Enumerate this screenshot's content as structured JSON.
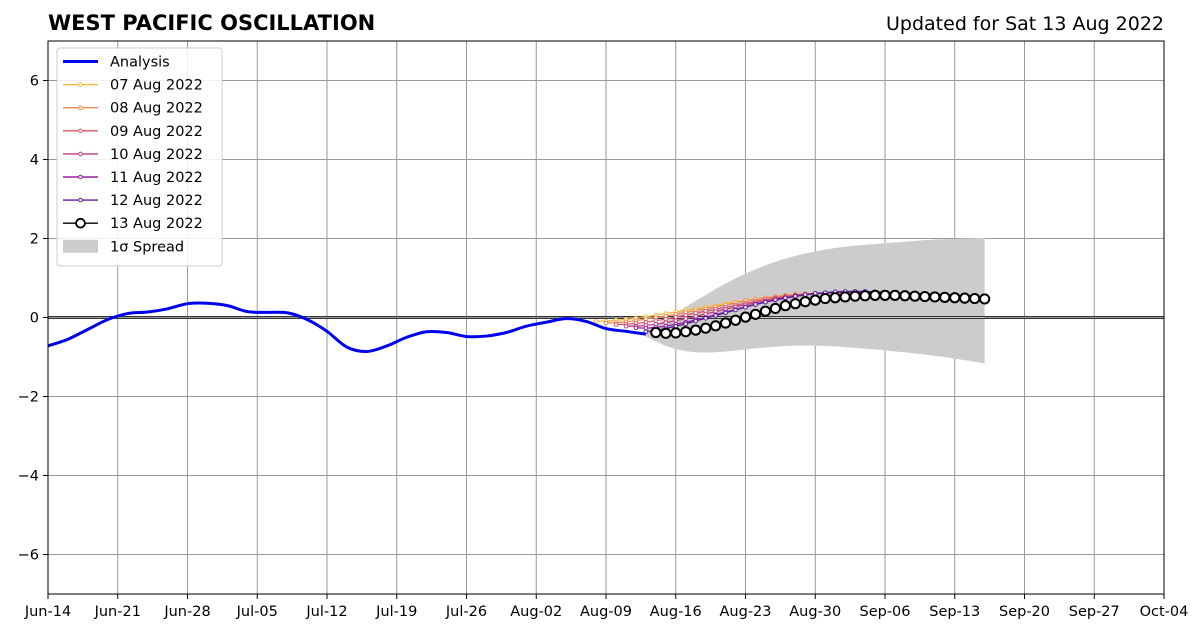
{
  "chart_data": {
    "type": "line",
    "title": "WEST PACIFIC OSCILLATION",
    "subtitle": "Updated for Sat 13 Aug 2022",
    "xlabel": "",
    "ylabel": "",
    "xlim": [
      "2022-06-14",
      "2022-10-04"
    ],
    "ylim": [
      -7,
      7
    ],
    "x_tick_labels": [
      "Jun-14",
      "Jun-21",
      "Jun-28",
      "Jul-05",
      "Jul-12",
      "Jul-19",
      "Jul-26",
      "Aug-02",
      "Aug-09",
      "Aug-16",
      "Aug-23",
      "Aug-30",
      "Sep-06",
      "Sep-13",
      "Sep-20",
      "Sep-27",
      "Oct-04"
    ],
    "x_tick_dates": [
      "2022-06-14",
      "2022-06-21",
      "2022-06-28",
      "2022-07-05",
      "2022-07-12",
      "2022-07-19",
      "2022-07-26",
      "2022-08-02",
      "2022-08-09",
      "2022-08-16",
      "2022-08-23",
      "2022-08-30",
      "2022-09-06",
      "2022-09-13",
      "2022-09-20",
      "2022-09-27",
      "2022-10-04"
    ],
    "y_ticks": [
      -6,
      -4,
      -2,
      0,
      2,
      4,
      6
    ],
    "y_tick_labels": [
      "−6",
      "−4",
      "−2",
      "0",
      "2",
      "4",
      "6"
    ],
    "grid": true,
    "legend_position": "top-left",
    "analysis": {
      "name": "Analysis",
      "color": "#0000ee",
      "points": [
        [
          "2022-06-14",
          -0.72
        ],
        [
          "2022-06-16",
          -0.55
        ],
        [
          "2022-06-18",
          -0.3
        ],
        [
          "2022-06-20",
          -0.05
        ],
        [
          "2022-06-22",
          0.1
        ],
        [
          "2022-06-24",
          0.14
        ],
        [
          "2022-06-26",
          0.22
        ],
        [
          "2022-06-28",
          0.35
        ],
        [
          "2022-06-30",
          0.36
        ],
        [
          "2022-07-02",
          0.3
        ],
        [
          "2022-07-04",
          0.15
        ],
        [
          "2022-07-06",
          0.13
        ],
        [
          "2022-07-08",
          0.12
        ],
        [
          "2022-07-10",
          -0.05
        ],
        [
          "2022-07-12",
          -0.35
        ],
        [
          "2022-07-14",
          -0.75
        ],
        [
          "2022-07-16",
          -0.86
        ],
        [
          "2022-07-18",
          -0.72
        ],
        [
          "2022-07-20",
          -0.5
        ],
        [
          "2022-07-22",
          -0.36
        ],
        [
          "2022-07-24",
          -0.38
        ],
        [
          "2022-07-26",
          -0.48
        ],
        [
          "2022-07-28",
          -0.47
        ],
        [
          "2022-07-30",
          -0.38
        ],
        [
          "2022-08-01",
          -0.22
        ],
        [
          "2022-08-03",
          -0.12
        ],
        [
          "2022-08-05",
          -0.03
        ],
        [
          "2022-08-07",
          -0.1
        ],
        [
          "2022-08-09",
          -0.28
        ],
        [
          "2022-08-11",
          -0.35
        ],
        [
          "2022-08-13",
          -0.42
        ]
      ]
    },
    "forecasts": [
      {
        "name": "07 Aug 2022",
        "color": "#f9b840",
        "values": [
          -0.1,
          -0.09,
          -0.07,
          -0.05,
          -0.02,
          0.02,
          0.06,
          0.1,
          0.14,
          0.18,
          0.22,
          0.26,
          0.3,
          0.35,
          0.39,
          0.43,
          0.47,
          0.5,
          0.53,
          0.56,
          0.58,
          0.6,
          0.61,
          0.62,
          0.62,
          0.62,
          0.61,
          0.6,
          0.59,
          0.57,
          0.56,
          0.55,
          0.54,
          0.52,
          0.51,
          0.5,
          0.49,
          0.48,
          0.47
        ],
        "start": "2022-08-08"
      },
      {
        "name": "08 Aug 2022",
        "color": "#f08a4b",
        "values": [
          -0.14,
          -0.13,
          -0.11,
          -0.08,
          -0.04,
          0.0,
          0.04,
          0.08,
          0.13,
          0.17,
          0.22,
          0.27,
          0.32,
          0.37,
          0.42,
          0.46,
          0.5,
          0.53,
          0.56,
          0.58,
          0.6,
          0.61,
          0.62,
          0.62,
          0.62,
          0.61,
          0.6,
          0.59,
          0.58,
          0.57,
          0.56,
          0.55,
          0.54,
          0.53,
          0.52,
          0.51,
          0.5,
          0.49
        ],
        "start": "2022-08-09"
      },
      {
        "name": "09 Aug 2022",
        "color": "#e0556a",
        "values": [
          -0.18,
          -0.17,
          -0.15,
          -0.12,
          -0.08,
          -0.04,
          0.01,
          0.06,
          0.11,
          0.16,
          0.21,
          0.26,
          0.31,
          0.36,
          0.41,
          0.46,
          0.5,
          0.54,
          0.57,
          0.59,
          0.61,
          0.62,
          0.63,
          0.63,
          0.63,
          0.62,
          0.61,
          0.6,
          0.59,
          0.58,
          0.57,
          0.56,
          0.55,
          0.54,
          0.53,
          0.52,
          0.51
        ],
        "start": "2022-08-10"
      },
      {
        "name": "10 Aug 2022",
        "color": "#c13c82",
        "values": [
          -0.22,
          -0.22,
          -0.2,
          -0.17,
          -0.13,
          -0.08,
          -0.03,
          0.03,
          0.09,
          0.15,
          0.21,
          0.27,
          0.32,
          0.37,
          0.42,
          0.47,
          0.51,
          0.55,
          0.58,
          0.6,
          0.62,
          0.63,
          0.64,
          0.64,
          0.63,
          0.62,
          0.61,
          0.6,
          0.59,
          0.58,
          0.57,
          0.56,
          0.55,
          0.54,
          0.53,
          0.52
        ],
        "start": "2022-08-11"
      },
      {
        "name": "11 Aug 2022",
        "color": "#9a1fa6",
        "values": [
          -0.26,
          -0.27,
          -0.25,
          -0.22,
          -0.17,
          -0.12,
          -0.06,
          0.0,
          0.07,
          0.14,
          0.2,
          0.27,
          0.33,
          0.39,
          0.44,
          0.49,
          0.53,
          0.57,
          0.6,
          0.62,
          0.64,
          0.65,
          0.65,
          0.65,
          0.64,
          0.63,
          0.62,
          0.61,
          0.6,
          0.59,
          0.58,
          0.57,
          0.56,
          0.55,
          0.54
        ],
        "start": "2022-08-12"
      },
      {
        "name": "12 Aug 2022",
        "color": "#5a1a9a",
        "values": [
          -0.36,
          -0.33,
          -0.28,
          -0.22,
          -0.16,
          -0.09,
          -0.02,
          0.05,
          0.12,
          0.19,
          0.26,
          0.33,
          0.39,
          0.45,
          0.5,
          0.54,
          0.58,
          0.61,
          0.63,
          0.65,
          0.66,
          0.66,
          0.66,
          0.65,
          0.64,
          0.63,
          0.62,
          0.61,
          0.6,
          0.59,
          0.58,
          0.57,
          0.56,
          0.55
        ],
        "start": "2022-08-13"
      },
      {
        "name": "13 Aug 2022",
        "color": "#000000",
        "values": [
          -0.38,
          -0.4,
          -0.39,
          -0.36,
          -0.32,
          -0.27,
          -0.21,
          -0.14,
          -0.07,
          0.01,
          0.08,
          0.16,
          0.23,
          0.3,
          0.35,
          0.4,
          0.44,
          0.48,
          0.5,
          0.52,
          0.54,
          0.55,
          0.56,
          0.56,
          0.56,
          0.55,
          0.54,
          0.53,
          0.52,
          0.51,
          0.5,
          0.49,
          0.48,
          0.47
        ],
        "start": "2022-08-14"
      }
    ],
    "spread": {
      "name": "1σ Spread",
      "color": "#cccccc",
      "start": "2022-08-13",
      "upper": [
        -0.3,
        -0.18,
        -0.04,
        0.12,
        0.27,
        0.42,
        0.57,
        0.72,
        0.86,
        0.99,
        1.11,
        1.22,
        1.32,
        1.41,
        1.49,
        1.56,
        1.62,
        1.67,
        1.72,
        1.76,
        1.79,
        1.82,
        1.84,
        1.86,
        1.88,
        1.9,
        1.92,
        1.94,
        1.96,
        1.97,
        1.98,
        1.99,
        2.0,
        2.01,
        2.02
      ],
      "lower": [
        -0.48,
        -0.6,
        -0.72,
        -0.8,
        -0.85,
        -0.88,
        -0.89,
        -0.88,
        -0.86,
        -0.84,
        -0.81,
        -0.78,
        -0.76,
        -0.74,
        -0.72,
        -0.71,
        -0.71,
        -0.71,
        -0.72,
        -0.73,
        -0.75,
        -0.77,
        -0.79,
        -0.81,
        -0.83,
        -0.86,
        -0.88,
        -0.91,
        -0.94,
        -0.97,
        -1.0,
        -1.04,
        -1.08,
        -1.12,
        -1.16
      ]
    }
  }
}
